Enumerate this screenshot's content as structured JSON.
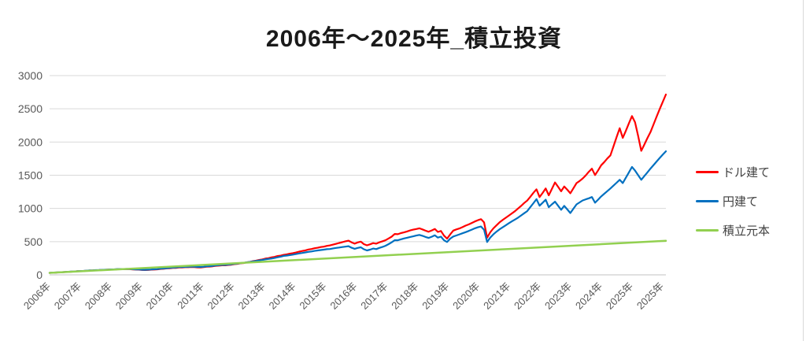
{
  "chart_data": {
    "type": "line",
    "title": "2006年〜2025年_積立投資",
    "xlabel": "",
    "ylabel": "",
    "grid": true,
    "legend_position": "right",
    "background": "#ffffff",
    "gridline_color": "#d9d9d9",
    "axis_line_color": "#c0c0c0",
    "tick_label_color": "#595959",
    "legend_text_color": "#404040",
    "title_color": "#1a1a1a",
    "y_axis": {
      "min": 0,
      "max": 3000,
      "step": 500,
      "ticks": [
        0,
        500,
        1000,
        1500,
        2000,
        2500,
        3000
      ]
    },
    "x_axis": {
      "rotation": -45,
      "labels": [
        "2006年",
        "2007年",
        "2008年",
        "2009年",
        "2010年",
        "2011年",
        "2012年",
        "2013年",
        "2014年",
        "2015年",
        "2016年",
        "2017年",
        "2018年",
        "2019年",
        "2020年",
        "2021年",
        "2022年",
        "2023年",
        "2024年",
        "2025年",
        "2025年"
      ]
    },
    "x_range_note": "2006 through mid-2025, series sampled uniformly",
    "series": [
      {
        "id": "usd",
        "name": "ドル建て",
        "color": "#ff0000",
        "width": 2.2,
        "values": [
          30,
          33,
          34,
          38,
          39,
          43,
          45,
          48,
          50,
          54,
          56,
          58,
          62,
          65,
          66,
          70,
          71,
          74,
          76,
          78,
          81,
          81,
          84,
          86,
          84,
          87,
          85,
          81,
          79,
          78,
          73,
          72,
          74,
          78,
          80,
          83,
          89,
          91,
          97,
          99,
          104,
          106,
          111,
          111,
          115,
          115,
          119,
          117,
          113,
          112,
          116,
          122,
          124,
          129,
          136,
          139,
          144,
          144,
          149,
          153,
          161,
          166,
          174,
          178,
          188,
          195,
          206,
          213,
          224,
          232,
          244,
          251,
          263,
          270,
          283,
          289,
          301,
          308,
          319,
          326,
          337,
          350,
          359,
          369,
          382,
          389,
          401,
          408,
          419,
          425,
          436,
          443,
          455,
          467,
          480,
          492,
          505,
          515,
          490,
          470,
          488,
          500,
          462,
          445,
          460,
          478,
          470,
          490,
          505,
          520,
          548,
          575,
          615,
          612,
          628,
          639,
          653,
          669,
          681,
          690,
          701,
          684,
          665,
          649,
          669,
          691,
          646,
          660,
          590,
          545,
          610,
          666,
          684,
          699,
          719,
          741,
          759,
          781,
          804,
          823,
          838,
          790,
          560,
          640,
          700,
          745,
          790,
          825,
          858,
          890,
          925,
          958,
          999,
          1038,
          1082,
          1118,
          1175,
          1235,
          1288,
          1172,
          1233,
          1301,
          1198,
          1293,
          1391,
          1327,
          1258,
          1331,
          1282,
          1228,
          1303,
          1381,
          1413,
          1451,
          1498,
          1552,
          1598,
          1502,
          1573,
          1651,
          1698,
          1752,
          1799,
          1934,
          2075,
          2208,
          2062,
          2168,
          2282,
          2391,
          2298,
          2088,
          1868,
          1961,
          2058,
          2149,
          2265,
          2385,
          2498,
          2606,
          2715
        ]
      },
      {
        "id": "jpy",
        "name": "円建て",
        "color": "#0070c0",
        "width": 2.2,
        "values": [
          30,
          33,
          35,
          38,
          40,
          43,
          46,
          49,
          51,
          55,
          57,
          59,
          63,
          66,
          67,
          71,
          72,
          75,
          77,
          79,
          82,
          83,
          86,
          88,
          86,
          89,
          87,
          84,
          82,
          81,
          77,
          75,
          78,
          81,
          84,
          87,
          93,
          96,
          101,
          104,
          109,
          112,
          116,
          117,
          120,
          121,
          125,
          123,
          120,
          118,
          122,
          128,
          131,
          135,
          142,
          146,
          149,
          150,
          155,
          159,
          166,
          170,
          177,
          182,
          188,
          194,
          203,
          210,
          217,
          224,
          232,
          239,
          246,
          254,
          265,
          274,
          286,
          291,
          298,
          305,
          313,
          322,
          330,
          338,
          346,
          352,
          361,
          367,
          373,
          379,
          386,
          389,
          398,
          406,
          412,
          418,
          425,
          432,
          408,
          392,
          405,
          415,
          385,
          368,
          380,
          396,
          388,
          405,
          420,
          438,
          462,
          490,
          522,
          520,
          535,
          548,
          558,
          570,
          580,
          592,
          601,
          588,
          570,
          556,
          574,
          595,
          561,
          575,
          520,
          495,
          545,
          577,
          593,
          609,
          626,
          643,
          661,
          681,
          701,
          716,
          728,
          680,
          495,
          560,
          610,
          650,
          685,
          715,
          745,
          775,
          805,
          833,
          861,
          894,
          927,
          959,
          1019,
          1079,
          1139,
          1041,
          1086,
          1131,
          1019,
          1061,
          1102,
          1041,
          979,
          1039,
          985,
          931,
          996,
          1061,
          1091,
          1121,
          1137,
          1153,
          1171,
          1086,
          1133,
          1181,
          1221,
          1261,
          1301,
          1344,
          1387,
          1431,
          1381,
          1462,
          1543,
          1625,
          1570,
          1500,
          1431,
          1487,
          1543,
          1600,
          1653,
          1707,
          1761,
          1811,
          1861
        ]
      },
      {
        "id": "principal",
        "name": "積立元本",
        "color": "#92d050",
        "width": 2.5,
        "values": [
          30,
          150,
          271,
          391,
          512
        ]
      }
    ]
  }
}
